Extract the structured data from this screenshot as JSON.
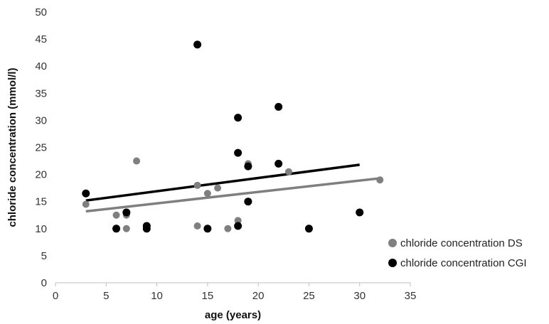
{
  "chart_data": {
    "type": "scatter",
    "xlabel": "age (years)",
    "ylabel": "chloride concentration (mmol/l)",
    "xlim": [
      0,
      35
    ],
    "ylim": [
      0,
      50
    ],
    "xticks": [
      0,
      5,
      10,
      15,
      20,
      25,
      30,
      35
    ],
    "yticks": [
      0,
      5,
      10,
      15,
      20,
      25,
      30,
      35,
      40,
      45,
      50
    ],
    "grid": false,
    "legend_position": "right",
    "series": [
      {
        "name": "chloride concentration DS",
        "color": "#7f7f7f",
        "points": [
          [
            3,
            14.5
          ],
          [
            6,
            12.5
          ],
          [
            7,
            12.5
          ],
          [
            7,
            10
          ],
          [
            8,
            22.5
          ],
          [
            9,
            10.5
          ],
          [
            14,
            18
          ],
          [
            14,
            10.5
          ],
          [
            15,
            16.5
          ],
          [
            16,
            17.5
          ],
          [
            17,
            10
          ],
          [
            18,
            11.5
          ],
          [
            19,
            22
          ],
          [
            23,
            20.5
          ],
          [
            32,
            19
          ]
        ],
        "trendline": [
          [
            3,
            13.2
          ],
          [
            32,
            19.3
          ]
        ]
      },
      {
        "name": "chloride concentration CGI",
        "color": "#000000",
        "points": [
          [
            3,
            16.5
          ],
          [
            6,
            10
          ],
          [
            7,
            13
          ],
          [
            9,
            10.5
          ],
          [
            9,
            10
          ],
          [
            14,
            44
          ],
          [
            15,
            10
          ],
          [
            18,
            30.5
          ],
          [
            18,
            24
          ],
          [
            18,
            10.5
          ],
          [
            19,
            21.5
          ],
          [
            19,
            15
          ],
          [
            22,
            32.5
          ],
          [
            22,
            22
          ],
          [
            25,
            10
          ],
          [
            30,
            13
          ]
        ],
        "trendline": [
          [
            3,
            15.2
          ],
          [
            30,
            21.8
          ]
        ]
      }
    ]
  }
}
